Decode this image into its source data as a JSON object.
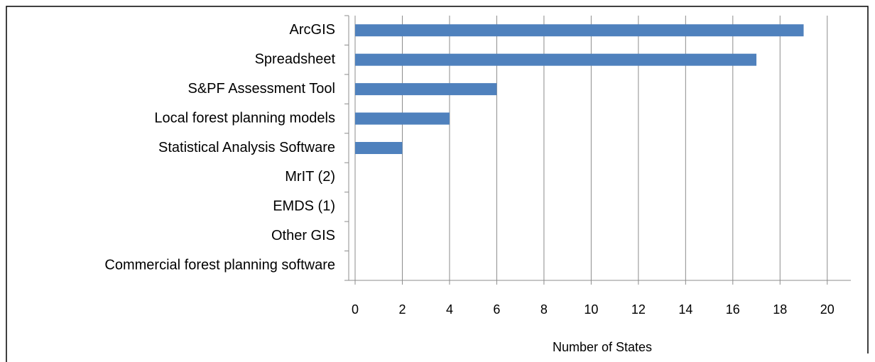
{
  "chart_data": {
    "type": "bar",
    "orientation": "horizontal",
    "categories": [
      "ArcGIS",
      "Spreadsheet",
      "S&PF Assessment Tool",
      "Local forest planning models",
      "Statistical Analysis Software",
      "MrIT (2)",
      "EMDS (1)",
      "Other GIS",
      "Commercial forest planning software"
    ],
    "values": [
      19,
      17,
      6,
      4,
      2,
      0,
      0,
      0,
      0
    ],
    "color": "#4f81bd",
    "x_label": "Number of States",
    "xlim": [
      0,
      21
    ],
    "xticks": [
      0,
      2,
      4,
      6,
      8,
      10,
      12,
      14,
      16,
      18,
      20
    ],
    "grid": true
  }
}
